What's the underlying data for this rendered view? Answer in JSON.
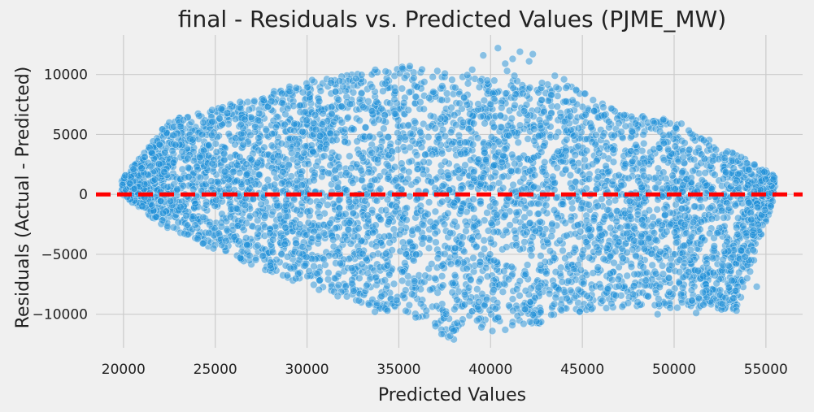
{
  "chart_data": {
    "type": "scatter",
    "title": "final - Residuals vs. Predicted Values (PJME_MW)",
    "xlabel": "Predicted Values",
    "ylabel": "Residuals (Actual - Predicted)",
    "xlim": [
      18500,
      57000
    ],
    "ylim": [
      -12800,
      13300
    ],
    "xticks": [
      20000,
      25000,
      30000,
      35000,
      40000,
      45000,
      50000,
      55000
    ],
    "yticks": [
      -10000,
      -5000,
      0,
      5000,
      10000
    ],
    "xtick_labels": [
      "20000",
      "25000",
      "30000",
      "35000",
      "40000",
      "45000",
      "50000",
      "55000"
    ],
    "ytick_labels": [
      "−10000",
      "−5000",
      "0",
      "5000",
      "10000"
    ],
    "grid": true,
    "point_color": "#1f8fd8",
    "point_opacity": 0.5,
    "reference_line": {
      "y": 0,
      "color": "#ff0000",
      "style": "dashed"
    },
    "envelope": {
      "upper": [
        [
          19900,
          1200
        ],
        [
          22500,
          6200
        ],
        [
          26500,
          7800
        ],
        [
          30000,
          9500
        ],
        [
          35000,
          10700
        ],
        [
          38000,
          10100
        ],
        [
          42000,
          9400
        ],
        [
          44500,
          9000
        ],
        [
          47000,
          6800
        ],
        [
          50000,
          6200
        ],
        [
          52000,
          4500
        ],
        [
          55500,
          1600
        ]
      ],
      "lower": [
        [
          19900,
          0
        ],
        [
          22000,
          -2500
        ],
        [
          26000,
          -5300
        ],
        [
          30000,
          -7700
        ],
        [
          34000,
          -9600
        ],
        [
          38000,
          -12100
        ],
        [
          40000,
          -11000
        ],
        [
          42000,
          -11000
        ],
        [
          46000,
          -9500
        ],
        [
          49000,
          -9500
        ],
        [
          51000,
          -9500
        ],
        [
          53500,
          -9700
        ],
        [
          55500,
          0
        ]
      ]
    },
    "outliers": [
      [
        40400,
        12200
      ],
      [
        41600,
        11900
      ],
      [
        39600,
        11600
      ],
      [
        41200,
        11300
      ],
      [
        42100,
        11100
      ],
      [
        40800,
        10900
      ],
      [
        42300,
        11700
      ],
      [
        39000,
        10400
      ],
      [
        43500,
        9900
      ],
      [
        44000,
        9600
      ],
      [
        40900,
        10300
      ],
      [
        42800,
        9300
      ],
      [
        35600,
        10700
      ],
      [
        35200,
        10500
      ],
      [
        37100,
        10300
      ],
      [
        41300,
        9900
      ],
      [
        40200,
        9500
      ],
      [
        46200,
        6600
      ],
      [
        49400,
        6200
      ],
      [
        50400,
        5900
      ],
      [
        37000,
        -11000
      ],
      [
        38000,
        -12100
      ],
      [
        37800,
        -11800
      ],
      [
        39500,
        -11100
      ],
      [
        40100,
        -11400
      ],
      [
        40800,
        -11300
      ],
      [
        41800,
        -10800
      ],
      [
        42500,
        -10600
      ],
      [
        49100,
        -10000
      ],
      [
        51200,
        -9900
      ],
      [
        53400,
        -9700
      ],
      [
        54500,
        -7700
      ],
      [
        36500,
        -9700
      ],
      [
        33700,
        -9800
      ]
    ]
  }
}
